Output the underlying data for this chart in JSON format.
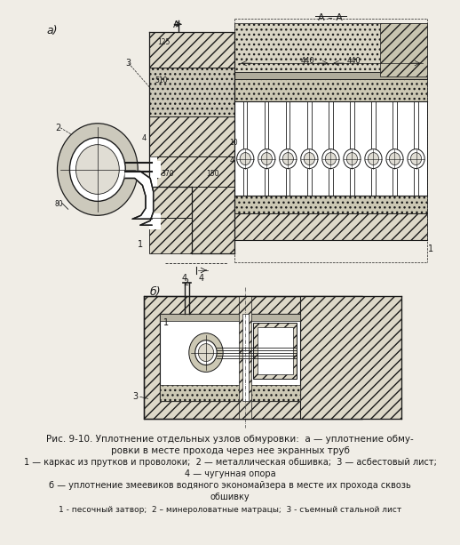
{
  "bg": "#f0ede6",
  "lc": "#1a1a1a",
  "hatch_light": "#ddd9cc",
  "hatch_medium": "#c8c4b0",
  "hatch_dark": "#b8b4a0",
  "white": "#ffffff",
  "caption_line1": "Рис. 9-10. Уплотнение отдельных узлов обмуровки:  а — уплотнение обму-",
  "caption_line2": "ровки в месте прохода через нее экранных труб",
  "caption_line3": "1 — каркас из прутков и проволоки;  2 — металлическая обшивка;  3 — асбестовый лист;",
  "caption_line4": "4 — чугунная опора",
  "caption_line5": "б — уплотнение змеевиков водяного экономайзера в месте их прохода сквозь",
  "caption_line6": "обшивку",
  "caption_line7": "1 - песочный затвор;  2 – минероловатные матрацы;  3 - съемный стальной лист"
}
